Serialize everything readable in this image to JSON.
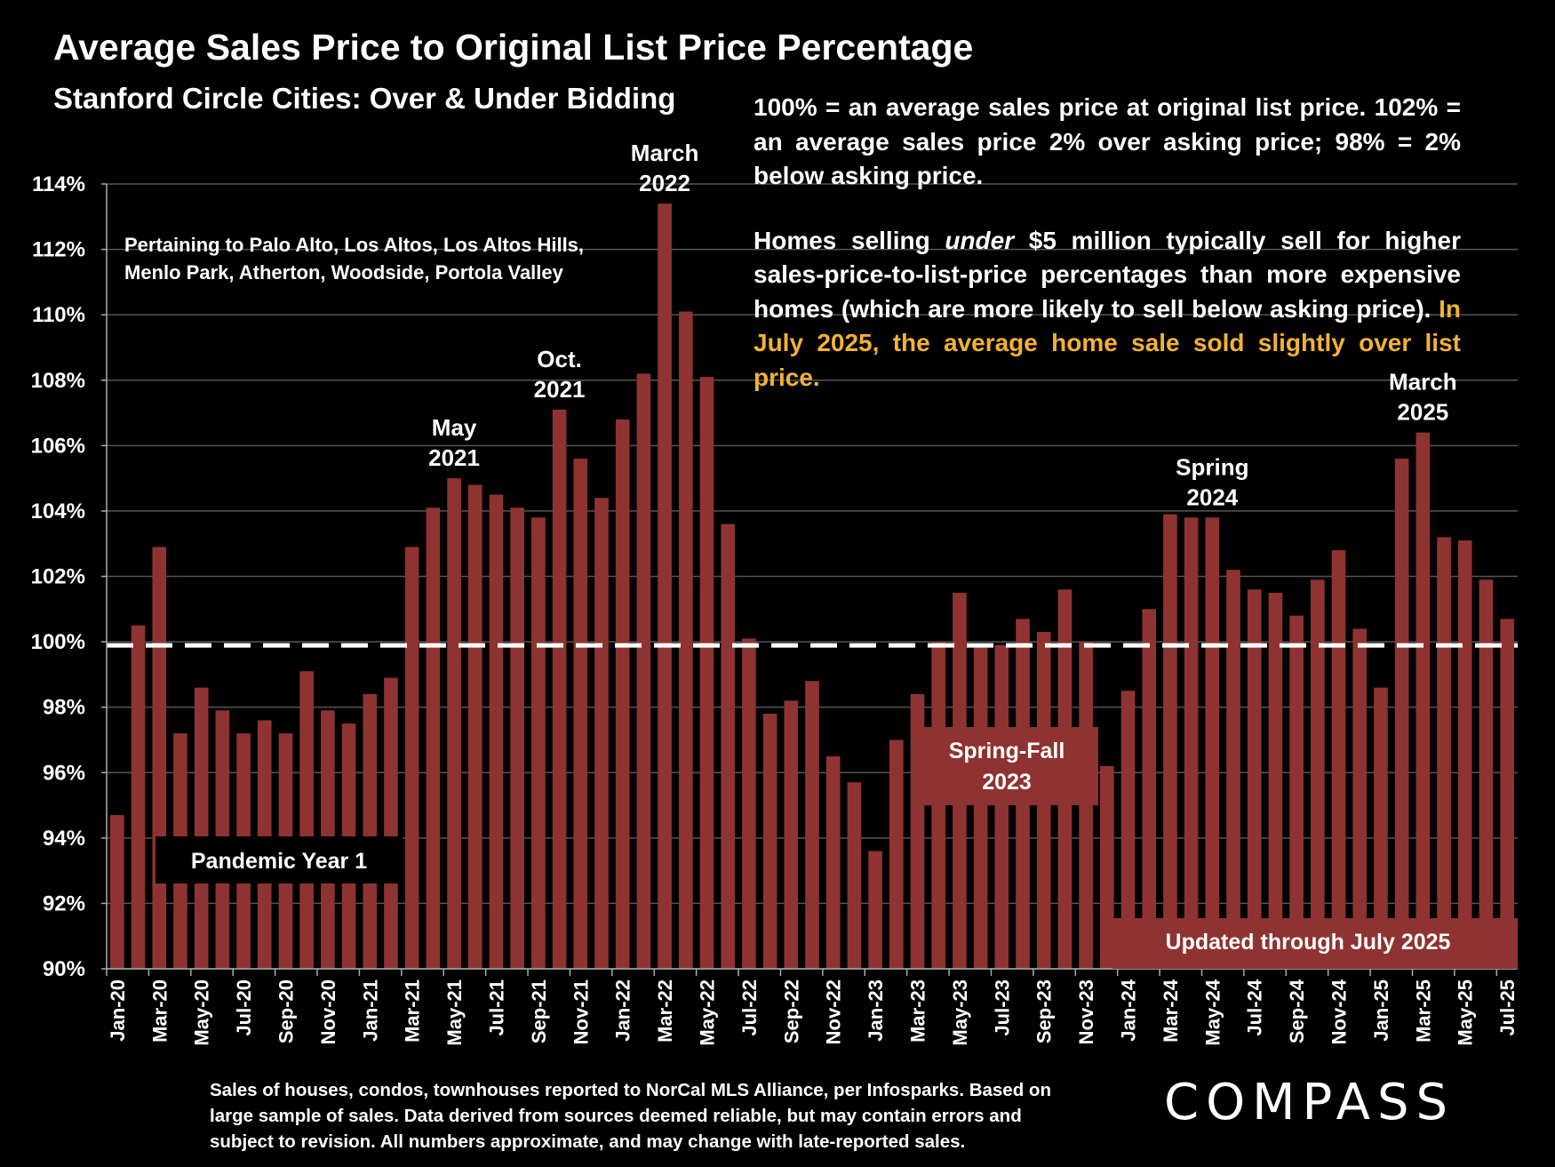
{
  "chart_data": {
    "type": "bar",
    "title": "Average Sales Price to Original List Price Percentage",
    "subtitle": "Stanford Circle Cities: Over & Under Bidding",
    "xlabel": "",
    "ylabel": "",
    "ylim": [
      90,
      114
    ],
    "yticks": [
      90,
      92,
      94,
      96,
      98,
      100,
      102,
      104,
      106,
      108,
      110,
      112,
      114
    ],
    "y_tick_labels": [
      "90%",
      "92%",
      "94%",
      "96%",
      "98%",
      "100%",
      "102%",
      "104%",
      "106%",
      "108%",
      "110%",
      "112%",
      "114%"
    ],
    "reference_line": 100,
    "grid": true,
    "bar_color": "#8e3331",
    "categories": [
      "Jan-20",
      "Feb-20",
      "Mar-20",
      "Apr-20",
      "May-20",
      "Jun-20",
      "Jul-20",
      "Aug-20",
      "Sep-20",
      "Oct-20",
      "Nov-20",
      "Dec-20",
      "Jan-21",
      "Feb-21",
      "Mar-21",
      "Apr-21",
      "May-21",
      "Jun-21",
      "Jul-21",
      "Aug-21",
      "Sep-21",
      "Oct-21",
      "Nov-21",
      "Dec-21",
      "Jan-22",
      "Feb-22",
      "Mar-22",
      "Apr-22",
      "May-22",
      "Jun-22",
      "Jul-22",
      "Aug-22",
      "Sep-22",
      "Oct-22",
      "Nov-22",
      "Dec-22",
      "Jan-23",
      "Feb-23",
      "Mar-23",
      "Apr-23",
      "May-23",
      "Jun-23",
      "Jul-23",
      "Aug-23",
      "Sep-23",
      "Oct-23",
      "Nov-23",
      "Dec-23",
      "Jan-24",
      "Feb-24",
      "Mar-24",
      "Apr-24",
      "May-24",
      "Jun-24",
      "Jul-24",
      "Aug-24",
      "Sep-24",
      "Oct-24",
      "Nov-24",
      "Dec-24",
      "Jan-25",
      "Feb-25",
      "Mar-25",
      "Apr-25",
      "May-25",
      "Jun-25",
      "Jul-25"
    ],
    "values": [
      94.7,
      100.5,
      102.9,
      97.2,
      98.6,
      97.9,
      97.2,
      97.6,
      97.2,
      99.1,
      97.9,
      97.5,
      98.4,
      98.9,
      102.9,
      104.1,
      105.0,
      104.8,
      104.5,
      104.1,
      103.8,
      107.1,
      105.6,
      104.4,
      106.8,
      108.2,
      113.4,
      110.1,
      108.1,
      103.6,
      100.1,
      97.8,
      98.2,
      98.8,
      96.5,
      95.7,
      93.6,
      97.0,
      98.4,
      100.0,
      101.5,
      99.9,
      99.9,
      100.7,
      100.3,
      101.6,
      100.0,
      96.2,
      98.5,
      101.0,
      103.9,
      103.8,
      103.8,
      102.2,
      101.6,
      101.5,
      100.8,
      101.9,
      102.8,
      100.4,
      98.6,
      105.6,
      106.4,
      103.2,
      103.1,
      101.9,
      100.7
    ],
    "x_tick_labels": [
      "Jan-20",
      "Mar-20",
      "May-20",
      "Jul-20",
      "Sep-20",
      "Nov-20",
      "Jan-21",
      "Mar-21",
      "May-21",
      "Jul-21",
      "Sep-21",
      "Nov-21",
      "Jan-22",
      "Mar-22",
      "May-22",
      "Jul-22",
      "Sep-22",
      "Nov-22",
      "Jan-23",
      "Mar-23",
      "May-23",
      "Jul-23",
      "Sep-23",
      "Nov-23",
      "Jan-24",
      "Mar-24",
      "May-24",
      "Jul-24",
      "Sep-24",
      "Nov-24",
      "Jan-25",
      "Mar-25",
      "May-25",
      "Jul-25"
    ],
    "annotations": [
      {
        "index": 16,
        "lines": [
          "May",
          "2021"
        ]
      },
      {
        "index": 21,
        "lines": [
          "Oct.",
          "2021"
        ]
      },
      {
        "index": 26,
        "lines": [
          "March",
          "2022"
        ]
      },
      {
        "index": 52,
        "lines": [
          "Spring",
          "2024"
        ]
      },
      {
        "index": 62,
        "lines": [
          "March",
          "2025"
        ]
      }
    ],
    "boxes": [
      {
        "name": "pandemic",
        "text": "Pandemic Year 1"
      },
      {
        "name": "spring-fall",
        "lines": [
          "Spring-Fall",
          "2023"
        ]
      },
      {
        "name": "updated",
        "text": "Updated through July 2025"
      }
    ]
  },
  "note": {
    "p1": "100% = an average sales price at original list price. 102% = an average sales price 2% over asking price; 98% = 2% below asking price.",
    "p2_a": "Homes selling ",
    "p2_em": "under",
    "p2_b": " $5 million typically sell for higher sales-price-to-list-price percentages than more expensive homes (which are more likely to sell below asking price). ",
    "p2_hl": "In July 2025, the average home sale sold slightly over list price.",
    "highlight_color": "#f2b233"
  },
  "pertaining": {
    "line1": "Pertaining to Palo Alto, Los Altos, Los Altos Hills,",
    "line2": "Menlo Park, Atherton, Woodside, Portola Valley"
  },
  "disclaimer": "Sales of houses, condos, townhouses reported to NorCal MLS Alliance, per Infosparks. Based on large sample of sales. Data derived from sources deemed reliable, but may contain errors and subject to revision. All numbers approximate, and may change with late-reported sales.",
  "logo": "COMPASS"
}
